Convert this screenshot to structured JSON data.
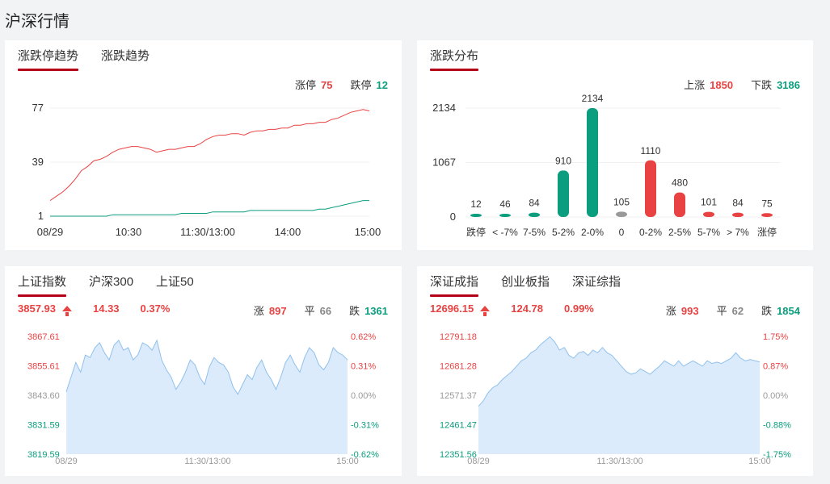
{
  "page_title": "沪深行情",
  "panel_trend": {
    "tabs": [
      "涨跌停趋势",
      "涨跌趋势"
    ],
    "limit_up_label": "涨停",
    "limit_up_value": "75",
    "limit_down_label": "跌停",
    "limit_down_value": "12"
  },
  "panel_dist": {
    "tabs": [
      "涨跌分布"
    ],
    "up_label": "上涨",
    "up_value": "1850",
    "down_label": "下跌",
    "down_value": "3186"
  },
  "panel_sh": {
    "tabs": [
      "上证指数",
      "沪深300",
      "上证50"
    ],
    "price": "3857.93",
    "change": "14.33",
    "change_pct": "0.37%",
    "rise_label": "涨",
    "rise_value": "897",
    "flat_label": "平",
    "flat_value": "66",
    "fall_label": "跌",
    "fall_value": "1361"
  },
  "panel_sz": {
    "tabs": [
      "深证成指",
      "创业板指",
      "深证综指"
    ],
    "price": "12696.15",
    "change": "124.78",
    "change_pct": "0.99%",
    "rise_label": "涨",
    "rise_value": "993",
    "flat_label": "平",
    "flat_value": "62",
    "fall_label": "跌",
    "fall_value": "1854"
  },
  "colors": {
    "up": "#e94242",
    "down": "#0a9e7e",
    "flat": "#999999",
    "accent": "#b5001a",
    "area": "#dcebfb",
    "area_line": "#8fc1ec"
  },
  "chart_data": [
    {
      "type": "line",
      "x_ticks": [
        "08/29",
        "10:30",
        "11:30/13:00",
        "14:00",
        "15:00"
      ],
      "y_ticks": [
        1,
        39,
        77
      ],
      "ylim": [
        1,
        77
      ],
      "series": [
        {
          "name": "涨停",
          "color": "#e94242",
          "values": [
            12,
            15,
            18,
            22,
            27,
            33,
            36,
            40,
            41,
            43,
            46,
            48,
            49,
            50,
            50,
            49,
            48,
            46,
            47,
            48,
            48,
            49,
            50,
            50,
            52,
            55,
            57,
            58,
            58,
            59,
            59,
            58,
            60,
            61,
            61,
            62,
            62,
            63,
            63,
            65,
            65,
            66,
            66,
            67,
            67,
            69,
            70,
            72,
            74,
            75,
            76,
            75
          ]
        },
        {
          "name": "跌停",
          "color": "#0a9e7e",
          "values": [
            1,
            1,
            1,
            1,
            1,
            1,
            1,
            1,
            1,
            1,
            2,
            2,
            2,
            2,
            2,
            2,
            2,
            2,
            2,
            2,
            2,
            3,
            3,
            3,
            3,
            3,
            4,
            4,
            4,
            4,
            4,
            4,
            5,
            5,
            5,
            5,
            5,
            5,
            5,
            5,
            5,
            5,
            5,
            6,
            6,
            7,
            8,
            9,
            10,
            11,
            12,
            12
          ]
        }
      ]
    },
    {
      "type": "bar",
      "categories": [
        "跌停",
        "< -7%",
        "7-5%",
        "5-2%",
        "2-0%",
        "0",
        "0-2%",
        "2-5%",
        "5-7%",
        "> 7%",
        "涨停"
      ],
      "values": [
        12,
        46,
        84,
        910,
        2134,
        105,
        1110,
        480,
        101,
        84,
        75
      ],
      "bar_colors": [
        "#0a9e7e",
        "#0a9e7e",
        "#0a9e7e",
        "#0a9e7e",
        "#0a9e7e",
        "#999999",
        "#e94242",
        "#e94242",
        "#e94242",
        "#e94242",
        "#e94242"
      ],
      "y_ticks": [
        0,
        1067,
        2134
      ],
      "ylim": [
        0,
        2134
      ]
    },
    {
      "type": "area",
      "title": "上证指数",
      "x_ticks": [
        "08/29",
        "11:30/13:00",
        "15:00"
      ],
      "y_ticks": [
        "3867.61",
        "3855.61",
        "3843.60",
        "3831.59",
        "3819.59"
      ],
      "pct_ticks": [
        "0.62%",
        "0.31%",
        "0.00%",
        "-0.31%",
        "-0.62%"
      ],
      "ylim": [
        3819.59,
        3867.61
      ],
      "values": [
        3845,
        3851,
        3857,
        3853,
        3860,
        3859,
        3863,
        3865,
        3861,
        3858,
        3864,
        3866,
        3862,
        3863,
        3858,
        3860,
        3865,
        3864,
        3862,
        3866,
        3858,
        3854,
        3851,
        3846,
        3849,
        3853,
        3858,
        3856,
        3851,
        3848,
        3855,
        3859,
        3857,
        3856,
        3853,
        3847,
        3844,
        3848,
        3852,
        3850,
        3855,
        3858,
        3853,
        3850,
        3846,
        3851,
        3857,
        3860,
        3856,
        3853,
        3859,
        3863,
        3861,
        3856,
        3854,
        3857,
        3863,
        3861,
        3860,
        3858
      ]
    },
    {
      "type": "area",
      "title": "深证成指",
      "x_ticks": [
        "08/29",
        "11:30/13:00",
        "15:00"
      ],
      "y_ticks": [
        "12791.18",
        "12681.28",
        "12571.37",
        "12461.47",
        "12351.56"
      ],
      "pct_ticks": [
        "1.75%",
        "0.87%",
        "0.00%",
        "-0.88%",
        "-1.75%"
      ],
      "ylim": [
        12351.56,
        12791.18
      ],
      "values": [
        12530,
        12550,
        12580,
        12600,
        12610,
        12630,
        12645,
        12660,
        12680,
        12700,
        12710,
        12730,
        12740,
        12760,
        12775,
        12790,
        12770,
        12740,
        12750,
        12720,
        12710,
        12730,
        12735,
        12720,
        12740,
        12730,
        12750,
        12730,
        12720,
        12700,
        12680,
        12660,
        12650,
        12655,
        12670,
        12660,
        12650,
        12665,
        12680,
        12700,
        12690,
        12680,
        12700,
        12680,
        12690,
        12700,
        12690,
        12680,
        12700,
        12690,
        12695,
        12690,
        12700,
        12710,
        12730,
        12710,
        12700,
        12705,
        12700,
        12696
      ]
    }
  ]
}
